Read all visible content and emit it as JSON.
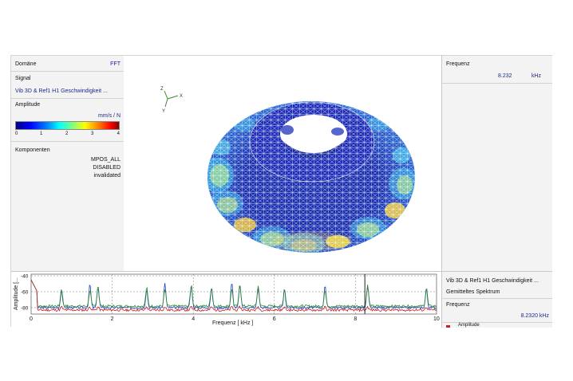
{
  "left_panel": {
    "domain_label": "Domäne",
    "domain_value": "FFT",
    "signal_label": "Signal",
    "signal_value": "Vib 3D & Ref1 H1 Geschwindigkeit ...",
    "amplitude_label": "Amplitude",
    "amplitude_unit": "mm/s / N",
    "scale_ticks": [
      "0",
      "1",
      "2",
      "3",
      "4"
    ],
    "components_label": "Komponenten",
    "components_values": [
      "MPOS_ALL",
      "DISABLED",
      "invalidated"
    ]
  },
  "view": {
    "axis_x": "X",
    "axis_y": "Y",
    "axis_z": "Z"
  },
  "right_panel": {
    "freq_label": "Frequenz",
    "freq_value": "8.232",
    "freq_unit": "kHz"
  },
  "bottom_right": {
    "signal": "Vib 3D & Ref1 H1 Geschwindigkeit ...",
    "spectrum": "Gemitteltes Spektrum",
    "freq_label": "Frequenz",
    "freq_value": "8.2320 kHz",
    "legend_item": "Amplitude"
  },
  "chart_data": {
    "type": "line",
    "xlabel": "Frequenz [ kHz ]",
    "ylabel": "Amplitude [...",
    "xlim": [
      0,
      10
    ],
    "ylim": [
      -88,
      -38
    ],
    "x_ticks": [
      "0",
      "2",
      "4",
      "6",
      "8",
      "10"
    ],
    "y_ticks": [
      "-40",
      "-60",
      "-80"
    ],
    "cursor_x": 8.232,
    "colors": {
      "series1": "#1f3fbf",
      "series2": "#2a8a2a",
      "series3": "#c42020"
    },
    "peaks": [
      0.75,
      1.45,
      1.65,
      2.85,
      3.3,
      3.95,
      4.45,
      4.95,
      5.15,
      5.6,
      6.25,
      7.25,
      8.3,
      9.75
    ]
  }
}
